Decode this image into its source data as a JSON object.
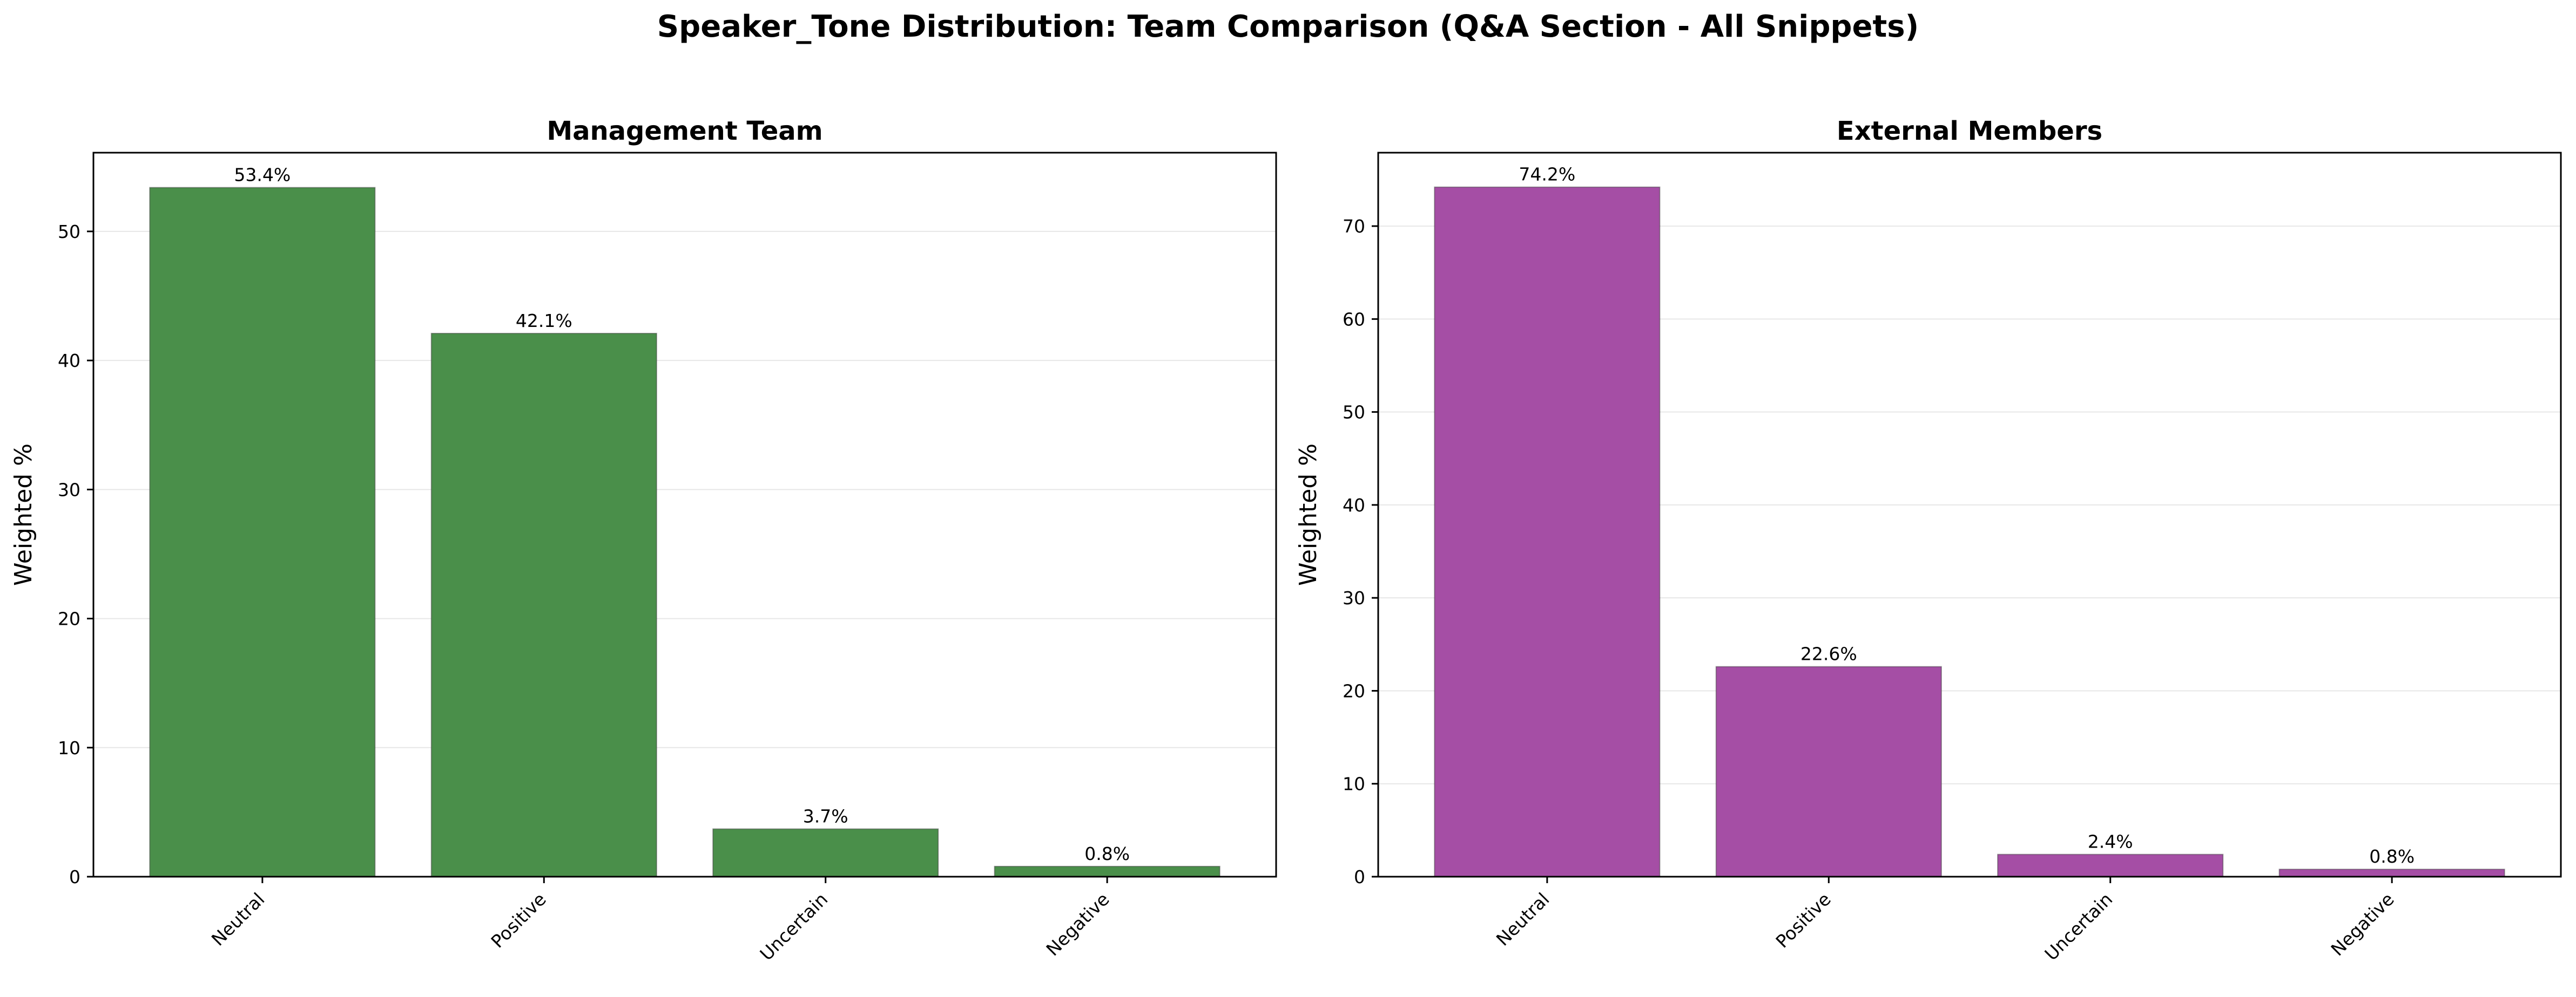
{
  "title": "Speaker_Tone Distribution: Team Comparison (Q&A Section - All Snippets)",
  "chart_data": [
    {
      "type": "bar",
      "title": "Management Team",
      "ylabel": "Weighted %",
      "xlabel": "",
      "categories": [
        "Neutral",
        "Positive",
        "Uncertain",
        "Negative"
      ],
      "values": [
        53.4,
        42.1,
        3.7,
        0.8
      ],
      "data_labels": [
        "53.4%",
        "42.1%",
        "3.7%",
        "0.8%"
      ],
      "ylim": [
        0,
        56.1
      ],
      "yticks": [
        0,
        10,
        20,
        30,
        40,
        50
      ],
      "grid": "y",
      "color": "#4a8f4a"
    },
    {
      "type": "bar",
      "title": "External Members",
      "ylabel": "Weighted %",
      "xlabel": "",
      "categories": [
        "Neutral",
        "Positive",
        "Uncertain",
        "Negative"
      ],
      "values": [
        74.2,
        22.6,
        2.4,
        0.8
      ],
      "data_labels": [
        "74.2%",
        "22.6%",
        "2.4%",
        "0.8%"
      ],
      "ylim": [
        0,
        77.9
      ],
      "yticks": [
        0,
        10,
        20,
        30,
        40,
        50,
        60,
        70
      ],
      "grid": "y",
      "color": "#a54ea5"
    }
  ]
}
